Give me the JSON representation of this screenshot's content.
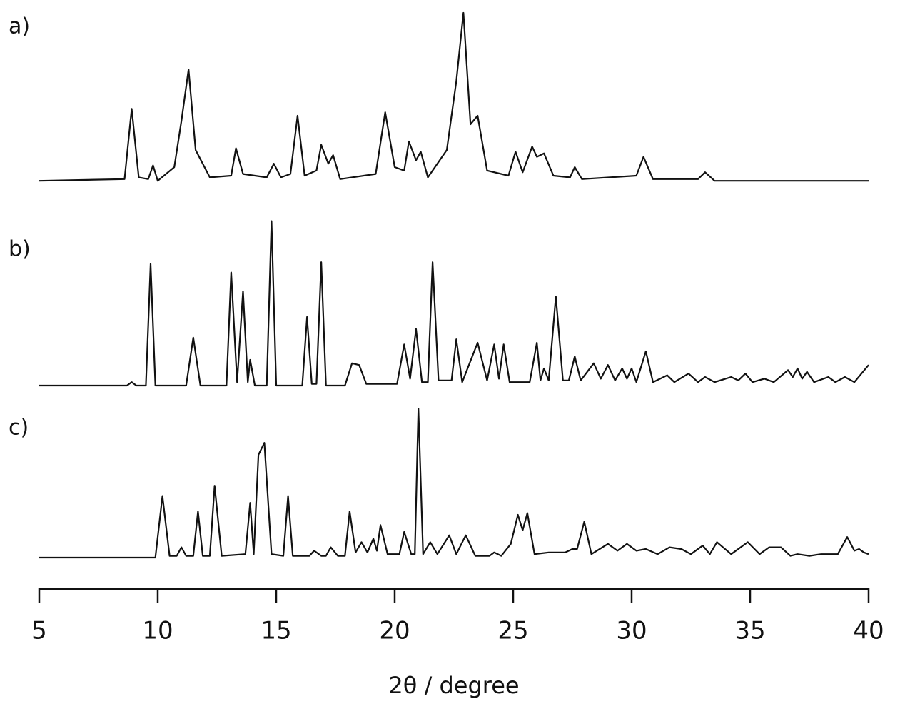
{
  "chart_data": [
    {
      "type": "line",
      "label": "a)",
      "color": "#111111",
      "xlim": [
        5,
        40
      ],
      "ylim": [
        0,
        100
      ],
      "x": [
        5,
        8.6,
        8.9,
        9.2,
        9.6,
        9.8,
        10.0,
        10.7,
        11.0,
        11.3,
        11.6,
        12.2,
        13.1,
        13.3,
        13.6,
        14.6,
        14.9,
        15.2,
        15.6,
        15.9,
        16.2,
        16.7,
        16.9,
        17.2,
        17.4,
        17.7,
        19.2,
        19.6,
        20.0,
        20.4,
        20.6,
        20.9,
        21.1,
        21.4,
        22.2,
        22.6,
        22.9,
        23.2,
        23.5,
        23.9,
        24.8,
        25.1,
        25.4,
        25.8,
        26.0,
        26.3,
        26.7,
        27.4,
        27.6,
        27.9,
        30.2,
        30.5,
        30.9,
        32.8,
        33.1,
        33.5,
        40
      ],
      "values": [
        2,
        3,
        44,
        4,
        3,
        11,
        2,
        10,
        37,
        67,
        20,
        4,
        5,
        21,
        6,
        4,
        12,
        4,
        6,
        40,
        5,
        8,
        23,
        12,
        17,
        3,
        6,
        42,
        10,
        8,
        25,
        14,
        19,
        4,
        20,
        60,
        100,
        35,
        40,
        8,
        5,
        19,
        7,
        22,
        16,
        18,
        5,
        4,
        10,
        3,
        5,
        16,
        3,
        3,
        7,
        2,
        2
      ]
    },
    {
      "type": "line",
      "label": "b)",
      "color": "#111111",
      "xlim": [
        5,
        40
      ],
      "ylim": [
        0,
        100
      ],
      "x": [
        5,
        8.7,
        8.9,
        9.1,
        9.5,
        9.7,
        9.9,
        11.2,
        11.5,
        11.8,
        12.9,
        13.1,
        13.35,
        13.6,
        13.8,
        13.9,
        14.1,
        14.6,
        14.8,
        15.0,
        16.1,
        16.3,
        16.5,
        16.7,
        16.9,
        17.1,
        17.9,
        18.2,
        18.5,
        18.8,
        20.1,
        20.4,
        20.65,
        20.9,
        21.15,
        21.4,
        21.6,
        21.85,
        22.4,
        22.6,
        22.85,
        23.5,
        23.9,
        24.2,
        24.4,
        24.6,
        24.85,
        25.7,
        26.0,
        26.15,
        26.3,
        26.5,
        26.8,
        27.1,
        27.35,
        27.6,
        27.85,
        28.4,
        28.7,
        29.0,
        29.3,
        29.6,
        29.8,
        30.0,
        30.2,
        30.6,
        30.9,
        31.5,
        31.8,
        32.4,
        32.8,
        33.1,
        33.5,
        34.2,
        34.5,
        34.8,
        35.1,
        35.6,
        36.0,
        36.6,
        36.8,
        37.0,
        37.2,
        37.4,
        37.7,
        38.3,
        38.6,
        39.0,
        39.4,
        40
      ],
      "values": [
        0,
        0,
        2,
        0,
        0,
        71,
        0,
        0,
        28,
        0,
        0,
        66,
        2,
        55,
        2,
        15,
        0,
        0,
        96,
        0,
        0,
        40,
        1,
        1,
        72,
        0,
        0,
        13,
        12,
        1,
        1,
        24,
        4,
        33,
        2,
        2,
        72,
        3,
        3,
        27,
        2,
        25,
        3,
        24,
        4,
        24,
        2,
        2,
        25,
        3,
        10,
        3,
        52,
        3,
        3,
        17,
        3,
        13,
        4,
        12,
        3,
        10,
        4,
        10,
        2,
        20,
        2,
        6,
        2,
        7,
        2,
        5,
        2,
        5,
        3,
        7,
        2,
        4,
        2,
        9,
        5,
        10,
        4,
        8,
        2,
        5,
        2,
        5,
        2,
        12
      ]
    },
    {
      "type": "line",
      "label": "c)",
      "color": "#111111",
      "xlim": [
        5,
        40
      ],
      "ylim": [
        0,
        100
      ],
      "xticks": [
        5,
        10,
        15,
        20,
        25,
        30,
        35,
        40
      ],
      "x_label": "2θ / degree",
      "x": [
        5,
        9.9,
        10.2,
        10.5,
        10.8,
        11.0,
        11.2,
        11.5,
        11.7,
        11.9,
        12.2,
        12.4,
        12.7,
        13.7,
        13.9,
        14.05,
        14.25,
        14.5,
        14.8,
        15.3,
        15.5,
        15.7,
        16.4,
        16.6,
        16.9,
        17.1,
        17.3,
        17.6,
        17.9,
        18.1,
        18.35,
        18.6,
        18.85,
        19.1,
        19.25,
        19.4,
        19.7,
        20.2,
        20.4,
        20.7,
        20.85,
        21.0,
        21.2,
        21.5,
        21.8,
        22.3,
        22.6,
        23.0,
        23.4,
        24.0,
        24.2,
        24.5,
        24.9,
        25.2,
        25.4,
        25.6,
        25.9,
        26.5,
        27.2,
        27.5,
        27.7,
        28.0,
        28.3,
        29.0,
        29.4,
        29.8,
        30.2,
        30.6,
        31.1,
        31.6,
        32.1,
        32.5,
        33.0,
        33.3,
        33.6,
        34.2,
        34.9,
        35.4,
        35.8,
        36.3,
        36.7,
        37.0,
        37.5,
        38.0,
        38.7,
        39.1,
        39.4,
        39.6,
        39.8,
        40
      ],
      "values": [
        0,
        0,
        36,
        1,
        1,
        6,
        1,
        1,
        27,
        1,
        1,
        42,
        1,
        2,
        32,
        2,
        60,
        67,
        2,
        1,
        36,
        1,
        1,
        4,
        1,
        1,
        6,
        1,
        1,
        27,
        3,
        9,
        3,
        11,
        4,
        19,
        2,
        2,
        15,
        2,
        2,
        87,
        2,
        9,
        2,
        13,
        2,
        13,
        1,
        1,
        3,
        1,
        8,
        25,
        16,
        26,
        2,
        3,
        3,
        5,
        5,
        21,
        2,
        8,
        4,
        8,
        4,
        5,
        2,
        6,
        5,
        2,
        7,
        2,
        9,
        2,
        9,
        2,
        6,
        6,
        1,
        2,
        1,
        2,
        2,
        12,
        4,
        5,
        3,
        2
      ]
    }
  ]
}
